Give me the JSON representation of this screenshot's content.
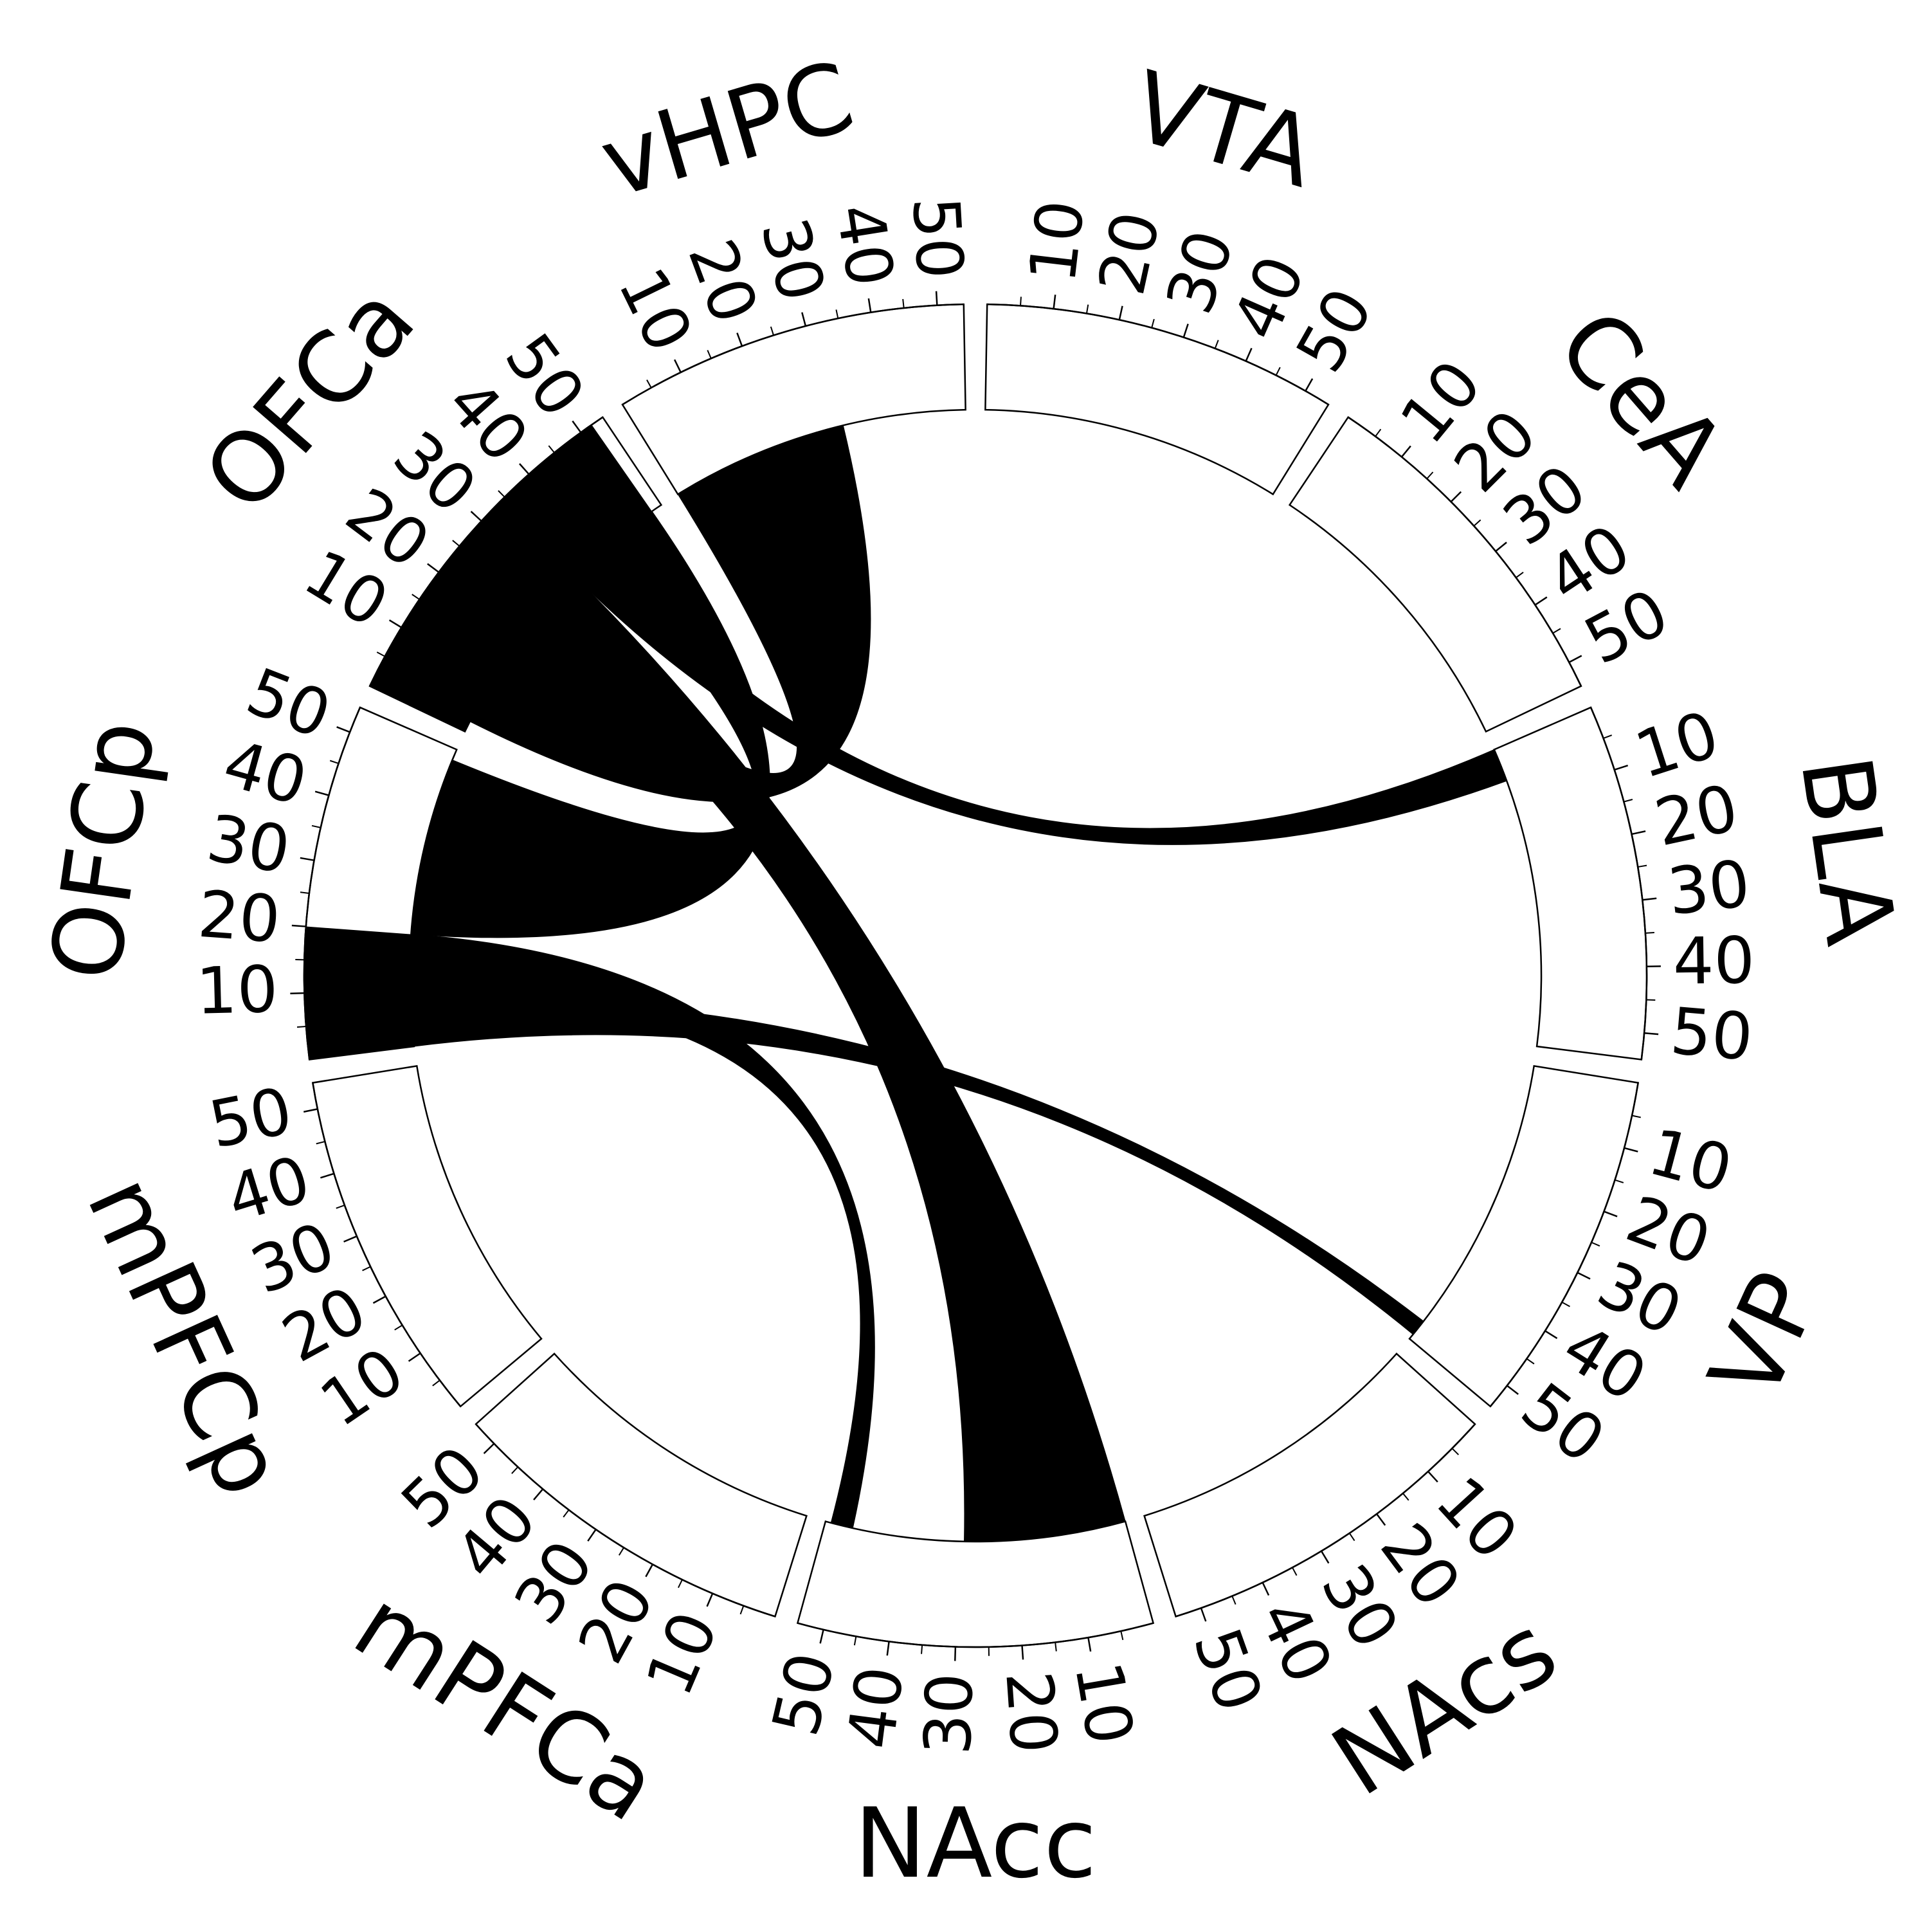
{
  "chart_data": {
    "type": "chord",
    "sectors": [
      "VTA",
      "CeA",
      "BLA",
      "VP",
      "NAcs",
      "NAcc",
      "mPFCa",
      "mPFCp",
      "OFCp",
      "OFCa",
      "vHPC"
    ],
    "xlim": [
      0,
      54
    ],
    "xticks": [
      10,
      20,
      30,
      40,
      50
    ],
    "minor_ticks": [
      5,
      15,
      25,
      35,
      45
    ],
    "gap_degrees": 2,
    "color": "#000000",
    "highlights": [
      {
        "sector": "OFCa",
        "range": [
          0,
          52
        ]
      },
      {
        "sector": "OFCp",
        "range": [
          0,
          20
        ]
      }
    ],
    "links": [
      {
        "from": "OFCa",
        "from_range": [
          2,
          22
        ],
        "to": "vHPC",
        "to_range": [
          0,
          32
        ]
      },
      {
        "from": "OFCa",
        "from_range": [
          22,
          34
        ],
        "to": "NAcc",
        "to_range": [
          0,
          29
        ]
      },
      {
        "from": "OFCa",
        "from_range": [
          34,
          40
        ],
        "to": "BLA",
        "to_range": [
          0,
          6
        ]
      },
      {
        "from": "OFCp",
        "from_range": [
          0,
          8
        ],
        "to": "VP",
        "to_range": [
          50,
          53
        ]
      },
      {
        "from": "OFCp",
        "from_range": [
          8,
          20
        ],
        "to": "NAcc",
        "to_range": [
          49,
          53
        ]
      },
      {
        "from": "OFCa",
        "from_range": [
          40,
          52
        ],
        "to": "OFCp",
        "to_range": [
          20,
          52
        ]
      }
    ]
  }
}
